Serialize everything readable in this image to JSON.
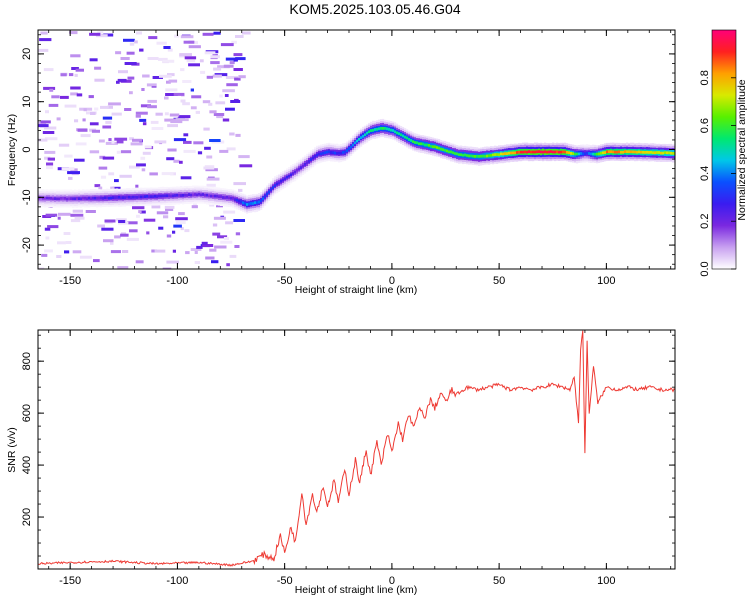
{
  "title": "KOM5.2025.103.05.46.G04",
  "colors": {
    "snr_line": "#ee3a33",
    "colormap": [
      "#ffffff",
      "#c8a0f0",
      "#7a28e0",
      "#3a1cf0",
      "#0a50ff",
      "#00c8e8",
      "#00e870",
      "#58f000",
      "#d8ea00",
      "#ffa000",
      "#ff2020",
      "#ff0078"
    ]
  },
  "chart_data": [
    {
      "type": "heatmap",
      "xlabel": "Height of straight line (km)",
      "ylabel": "Frequency (Hz)",
      "xlim": [
        -165,
        132
      ],
      "ylim": [
        -25,
        25
      ],
      "xticks": [
        -150,
        -100,
        -50,
        0,
        50,
        100
      ],
      "yticks": [
        -20,
        -10,
        0,
        10,
        20
      ],
      "colorbar": {
        "label": "Normalized spectral amplitude",
        "range": [
          0,
          1
        ],
        "ticks": [
          0.0,
          0.2,
          0.4,
          0.6,
          0.8
        ]
      },
      "ridge": {
        "x": [
          -165,
          -150,
          -130,
          -110,
          -90,
          -75,
          -68,
          -62,
          -55,
          -45,
          -35,
          -30,
          -25,
          -22,
          -15,
          -10,
          -5,
          0,
          10,
          20,
          30,
          40,
          50,
          60,
          70,
          80,
          85,
          90,
          95,
          100,
          110,
          120,
          132
        ],
        "freq": [
          -10.2,
          -10.3,
          -10.1,
          -9.8,
          -9.4,
          -10.2,
          -11.5,
          -11,
          -7.5,
          -4.5,
          -1,
          -0.5,
          -0.8,
          -0.5,
          2.5,
          4,
          4.5,
          4,
          1.5,
          0.5,
          -1,
          -1.5,
          -1,
          -0.5,
          -0.5,
          -0.5,
          -1,
          -0.8,
          -1,
          -0.5,
          -0.5,
          -0.6,
          -0.8
        ],
        "amplitude": [
          0.18,
          0.2,
          0.26,
          0.25,
          0.2,
          0.22,
          0.4,
          0.38,
          0.28,
          0.22,
          0.3,
          0.32,
          0.3,
          0.35,
          0.45,
          0.52,
          0.55,
          0.5,
          0.55,
          0.62,
          0.58,
          0.6,
          0.7,
          0.9,
          0.95,
          0.9,
          0.6,
          0.3,
          0.6,
          0.85,
          0.8,
          0.75,
          0.7
        ]
      }
    },
    {
      "type": "line",
      "xlabel": "Height of straight line (km)",
      "ylabel": "SNR (v/v)",
      "xlim": [
        -165,
        132
      ],
      "ylim": [
        0,
        920
      ],
      "xticks": [
        -150,
        -100,
        -50,
        0,
        50,
        100
      ],
      "yticks": [
        200,
        400,
        600,
        800
      ],
      "series": [
        {
          "x": [
            -165,
            -150,
            -130,
            -110,
            -90,
            -75,
            -65,
            -60,
            -55,
            -52,
            -50,
            -47,
            -45,
            -42,
            -40,
            -37,
            -35,
            -32,
            -30,
            -27,
            -25,
            -22,
            -20,
            -17,
            -15,
            -12,
            -10,
            -7,
            -5,
            -2,
            0,
            3,
            5,
            8,
            10,
            13,
            15,
            18,
            20,
            23,
            25,
            28,
            30,
            35,
            40,
            45,
            50,
            55,
            60,
            65,
            70,
            75,
            80,
            83,
            85,
            87,
            88,
            89,
            90,
            91,
            92,
            94,
            96,
            100,
            105,
            110,
            115,
            120,
            125,
            132
          ],
          "values": [
            20,
            25,
            30,
            20,
            25,
            15,
            30,
            55,
            40,
            130,
            60,
            165,
            100,
            300,
            170,
            290,
            220,
            320,
            240,
            340,
            260,
            380,
            290,
            420,
            330,
            460,
            360,
            490,
            400,
            520,
            450,
            560,
            500,
            600,
            540,
            620,
            580,
            650,
            620,
            680,
            640,
            690,
            670,
            700,
            690,
            700,
            710,
            690,
            700,
            690,
            700,
            710,
            700,
            690,
            740,
            560,
            850,
            920,
            440,
            880,
            600,
            780,
            640,
            700,
            690,
            700,
            690,
            700,
            690,
            690
          ]
        }
      ]
    }
  ]
}
